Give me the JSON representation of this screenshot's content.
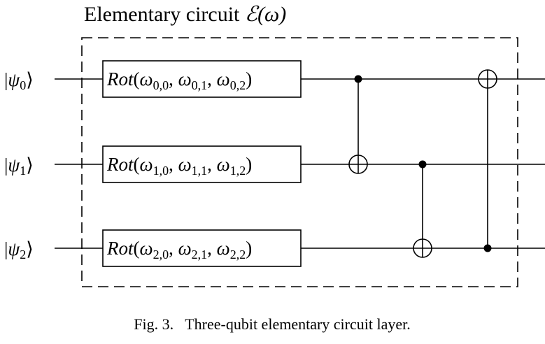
{
  "figure": {
    "title": "Elementary circuit ",
    "title_symbol": "ℰ(ω)",
    "caption": "Fig. 3.   Three-qubit elementary circuit layer."
  },
  "qubits": [
    {
      "ket_open": "|",
      "psi": "ψ",
      "index": "0",
      "ket_close": "⟩"
    },
    {
      "ket_open": "|",
      "psi": "ψ",
      "index": "1",
      "ket_close": "⟩"
    },
    {
      "ket_open": "|",
      "psi": "ψ",
      "index": "2",
      "ket_close": "⟩"
    }
  ],
  "gates": [
    {
      "name": "Rot",
      "open": "(",
      "omega": "ω",
      "sep": ", ",
      "close": ")",
      "subs": [
        "0,0",
        "0,1",
        "0,2"
      ]
    },
    {
      "name": "Rot",
      "open": "(",
      "omega": "ω",
      "sep": ", ",
      "close": ")",
      "subs": [
        "1,0",
        "1,1",
        "1,2"
      ]
    },
    {
      "name": "Rot",
      "open": "(",
      "omega": "ω",
      "sep": ", ",
      "close": ")",
      "subs": [
        "2,0",
        "2,1",
        "2,2"
      ]
    }
  ],
  "cnots": [
    {
      "control": 0,
      "target": 1
    },
    {
      "control": 1,
      "target": 2
    },
    {
      "control": 2,
      "target": 0
    }
  ]
}
